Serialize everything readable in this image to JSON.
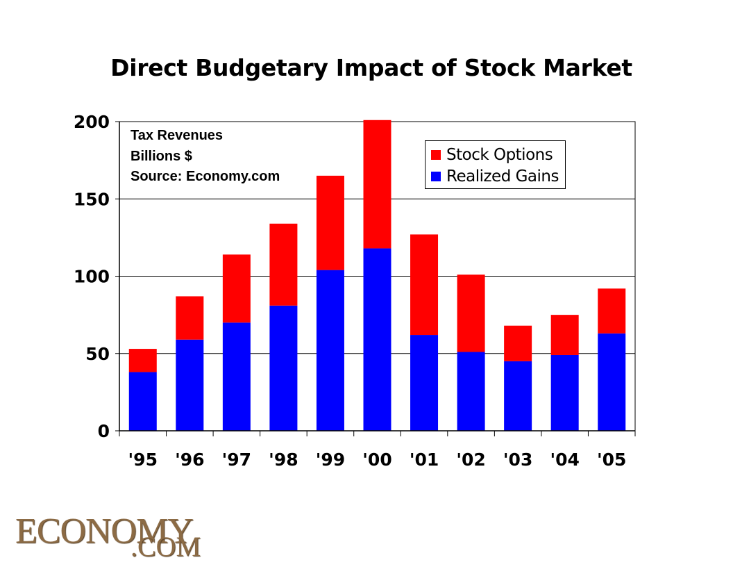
{
  "chart_data": {
    "type": "bar",
    "stacked": true,
    "title": "Direct Budgetary Impact of Stock Market",
    "annotations": [
      "Tax Revenues",
      "Billions $",
      "Source: Economy.com"
    ],
    "categories": [
      "'95",
      "'96",
      "'97",
      "'98",
      "'99",
      "'00",
      "'01",
      "'02",
      "'03",
      "'04",
      "'05"
    ],
    "series": [
      {
        "name": "Realized Gains",
        "color": "#0000ff",
        "values": [
          38,
          59,
          70,
          81,
          104,
          118,
          62,
          51,
          45,
          49,
          63
        ]
      },
      {
        "name": "Stock Options",
        "color": "#ff0000",
        "values": [
          15,
          28,
          44,
          53,
          61,
          83,
          65,
          50,
          23,
          26,
          29
        ]
      }
    ],
    "legend_order": [
      "Stock Options",
      "Realized Gains"
    ],
    "yticks": [
      "0",
      "50",
      "100",
      "150",
      "200"
    ],
    "ylim": [
      0,
      200
    ],
    "grid": true,
    "legend_position": "top-right"
  },
  "logo": {
    "text_top": "ECONOMY",
    "text_bottom": ".COM"
  }
}
